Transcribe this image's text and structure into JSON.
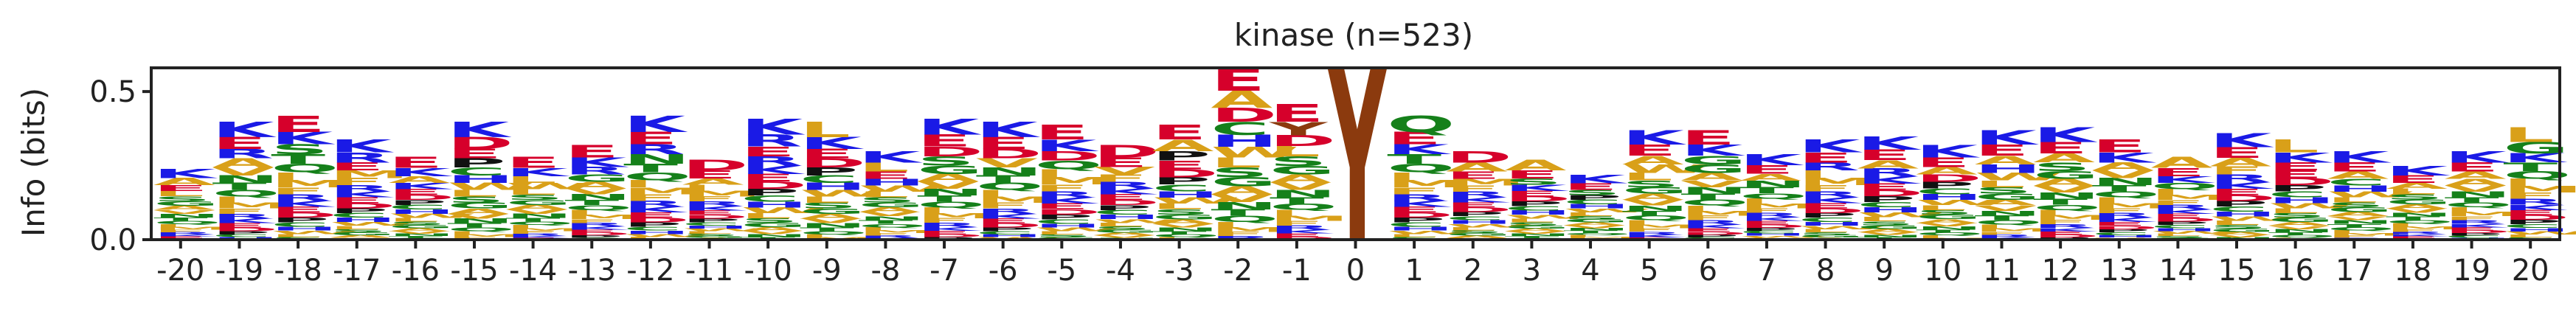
{
  "chart_data": {
    "type": "sequence-logo",
    "title": "kinase (n=523)",
    "ylabel": "Info (bits)",
    "xlabel": "",
    "ylim": [
      0,
      0.58
    ],
    "yticks": [
      {
        "value": 0.0,
        "label": "0.0"
      },
      {
        "value": 0.5,
        "label": "0.5"
      }
    ],
    "positions": [
      "-20",
      "-19",
      "-18",
      "-17",
      "-16",
      "-15",
      "-14",
      "-13",
      "-12",
      "-11",
      "-10",
      "-9",
      "-8",
      "-7",
      "-6",
      "-5",
      "-4",
      "-3",
      "-2",
      "-1",
      "0",
      "1",
      "2",
      "3",
      "4",
      "5",
      "6",
      "7",
      "8",
      "9",
      "10",
      "11",
      "12",
      "13",
      "14",
      "15",
      "16",
      "17",
      "18",
      "19",
      "20"
    ],
    "columns": [
      {
        "pos": "-20",
        "total": 0.24,
        "top": [
          "K",
          "A",
          "E"
        ]
      },
      {
        "pos": "-19",
        "total": 0.4,
        "top": [
          "K",
          "E",
          "R"
        ]
      },
      {
        "pos": "-18",
        "total": 0.42,
        "top": [
          "E",
          "K",
          "S"
        ]
      },
      {
        "pos": "-17",
        "total": 0.34,
        "top": [
          "K",
          "R",
          "E"
        ]
      },
      {
        "pos": "-16",
        "total": 0.28,
        "top": [
          "E",
          "K",
          "A"
        ]
      },
      {
        "pos": "-15",
        "total": 0.4,
        "top": [
          "K",
          "D",
          "E"
        ]
      },
      {
        "pos": "-14",
        "total": 0.28,
        "top": [
          "E",
          "K",
          "L"
        ]
      },
      {
        "pos": "-13",
        "total": 0.32,
        "top": [
          "E",
          "K",
          "R"
        ]
      },
      {
        "pos": "-12",
        "total": 0.42,
        "top": [
          "K",
          "E",
          "R"
        ]
      },
      {
        "pos": "-11",
        "total": 0.27,
        "top": [
          "D",
          "E",
          "A"
        ]
      },
      {
        "pos": "-10",
        "total": 0.41,
        "top": [
          "K",
          "R",
          "E"
        ]
      },
      {
        "pos": "-9",
        "total": 0.4,
        "top": [
          "L",
          "K",
          "E"
        ]
      },
      {
        "pos": "-8",
        "total": 0.3,
        "top": [
          "K",
          "L",
          "E"
        ]
      },
      {
        "pos": "-7",
        "total": 0.41,
        "top": [
          "K",
          "E",
          "D"
        ]
      },
      {
        "pos": "-6",
        "total": 0.4,
        "top": [
          "K",
          "E",
          "D"
        ]
      },
      {
        "pos": "-5",
        "total": 0.39,
        "top": [
          "E",
          "K",
          "D"
        ]
      },
      {
        "pos": "-4",
        "total": 0.32,
        "top": [
          "D",
          "E",
          "V"
        ]
      },
      {
        "pos": "-3",
        "total": 0.39,
        "top": [
          "E",
          "A",
          "P"
        ]
      },
      {
        "pos": "-2",
        "total": 0.58,
        "top": [
          "E",
          "A",
          "D"
        ]
      },
      {
        "pos": "-1",
        "total": 0.46,
        "top": [
          "E",
          "Y",
          "D"
        ]
      },
      {
        "pos": "0",
        "total": 0.58,
        "top": [
          "Y"
        ]
      },
      {
        "pos": "1",
        "total": 0.42,
        "top": [
          "Q",
          "E",
          "K"
        ]
      },
      {
        "pos": "2",
        "total": 0.3,
        "top": [
          "D",
          "A",
          "E"
        ]
      },
      {
        "pos": "3",
        "total": 0.27,
        "top": [
          "A",
          "E",
          "S"
        ]
      },
      {
        "pos": "4",
        "total": 0.22,
        "top": [
          "K",
          "E",
          "S"
        ]
      },
      {
        "pos": "5",
        "total": 0.37,
        "top": [
          "K",
          "E",
          "A"
        ]
      },
      {
        "pos": "6",
        "total": 0.37,
        "top": [
          "E",
          "K",
          "G"
        ]
      },
      {
        "pos": "7",
        "total": 0.29,
        "top": [
          "K",
          "E",
          "A"
        ]
      },
      {
        "pos": "8",
        "total": 0.34,
        "top": [
          "K",
          "E",
          "R"
        ]
      },
      {
        "pos": "9",
        "total": 0.35,
        "top": [
          "K",
          "E",
          "A"
        ]
      },
      {
        "pos": "10",
        "total": 0.32,
        "top": [
          "K",
          "E",
          "A"
        ]
      },
      {
        "pos": "11",
        "total": 0.37,
        "top": [
          "K",
          "E",
          "A"
        ]
      },
      {
        "pos": "12",
        "total": 0.38,
        "top": [
          "K",
          "E",
          "A"
        ]
      },
      {
        "pos": "13",
        "total": 0.34,
        "top": [
          "E",
          "K",
          "A"
        ]
      },
      {
        "pos": "14",
        "total": 0.28,
        "top": [
          "A",
          "E",
          "K"
        ]
      },
      {
        "pos": "15",
        "total": 0.36,
        "top": [
          "K",
          "E",
          "A"
        ]
      },
      {
        "pos": "16",
        "total": 0.34,
        "top": [
          "L",
          "K",
          "E"
        ]
      },
      {
        "pos": "17",
        "total": 0.3,
        "top": [
          "K",
          "E",
          "A"
        ]
      },
      {
        "pos": "18",
        "total": 0.25,
        "top": [
          "K",
          "E",
          "A"
        ]
      },
      {
        "pos": "19",
        "total": 0.3,
        "top": [
          "K",
          "E",
          "A"
        ]
      },
      {
        "pos": "20",
        "total": 0.38,
        "top": [
          "L",
          "G",
          "K"
        ]
      }
    ],
    "grid": false,
    "legend": "none"
  },
  "colors": {
    "acidic": "#d6002b",
    "basic": "#1a1ae6",
    "hydrophobic": "#d9a019",
    "polar": "#15801a",
    "neutral": "#a35fd6",
    "proline": "#111111",
    "tyrosine": "#8b3a0e",
    "axis": "#222222"
  }
}
